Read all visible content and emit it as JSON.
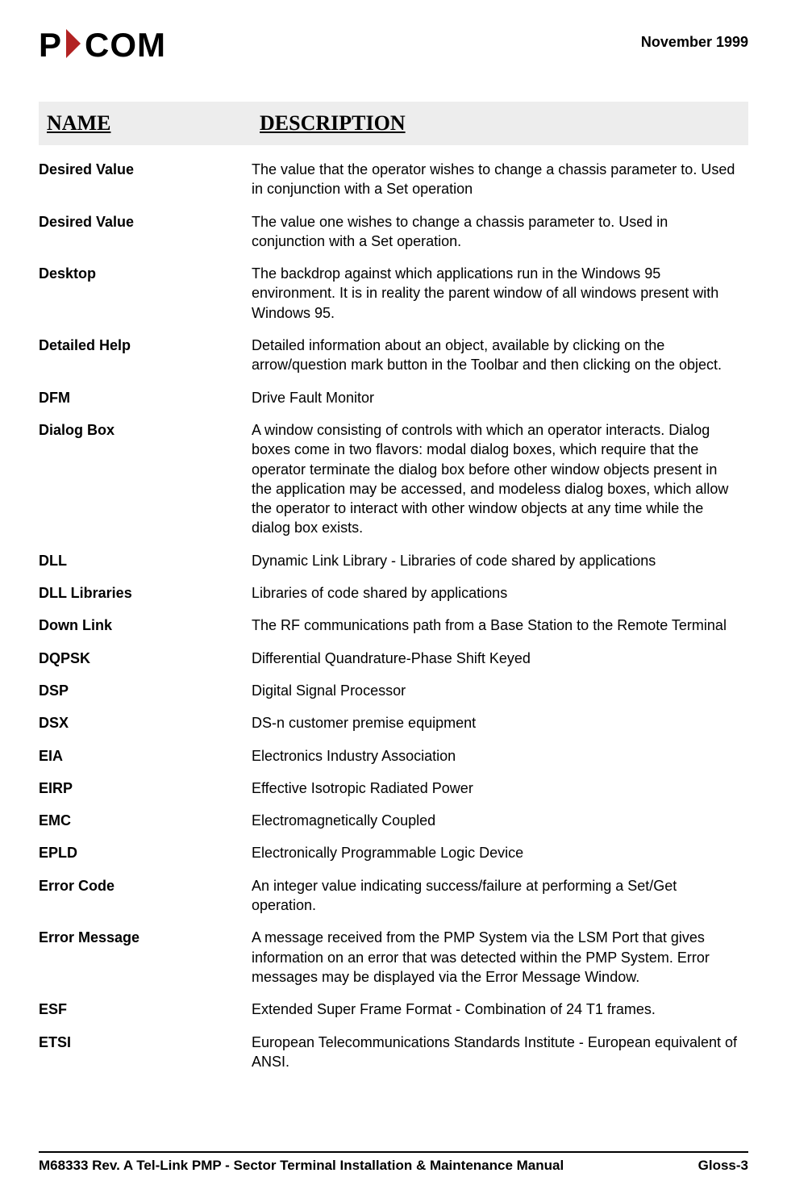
{
  "header": {
    "logo_p": "P",
    "logo_com": "COM",
    "triangle_color": "#b22222",
    "date": "November 1999"
  },
  "table": {
    "header_name": "NAME",
    "header_desc": "DESCRIPTION",
    "header_bg": "#ededed",
    "header_font": "Times New Roman",
    "header_fontsize": 26,
    "body_fontsize": 18,
    "name_col_width": 264,
    "rows": [
      {
        "name": "Desired Value",
        "desc": "The value that the operator wishes to change a chassis parameter to. Used in conjunction with a Set operation"
      },
      {
        "name": "Desired Value",
        "desc": "The value one wishes to change a chassis parameter to. Used in conjunction with a Set operation."
      },
      {
        "name": "Desktop",
        "desc": "The backdrop against which applications run in the Windows 95 environment. It is in reality the parent window of all windows present with Windows 95."
      },
      {
        "name": "Detailed Help",
        "desc": "Detailed information about an object, available by clicking on the arrow/question mark button in the Toolbar and then clicking on the object."
      },
      {
        "name": "DFM",
        "desc": "Drive Fault Monitor"
      },
      {
        "name": "Dialog Box",
        "desc": "A window consisting of controls with which an operator interacts. Dialog boxes come in two flavors: modal dialog boxes, which require that the operator terminate the dialog box before other window objects present in the application may be accessed, and modeless dialog boxes, which allow the operator to interact with other window objects at any time while the dialog box exists."
      },
      {
        "name": "DLL",
        "desc": "Dynamic Link Library - Libraries of code shared by applications"
      },
      {
        "name": "DLL Libraries",
        "desc": "Libraries of code shared by applications"
      },
      {
        "name": "Down Link",
        "desc": "The RF communications path from a Base Station to the Remote Terminal"
      },
      {
        "name": "DQPSK",
        "desc": "Differential Quandrature-Phase Shift Keyed"
      },
      {
        "name": "DSP",
        "desc": "Digital Signal Processor"
      },
      {
        "name": "DSX",
        "desc": "DS-n customer premise equipment"
      },
      {
        "name": "EIA",
        "desc": "Electronics Industry Association"
      },
      {
        "name": "EIRP",
        "desc": "Effective Isotropic Radiated Power"
      },
      {
        "name": "EMC",
        "desc": "Electromagnetically Coupled"
      },
      {
        "name": "EPLD",
        "desc": "Electronically Programmable Logic Device"
      },
      {
        "name": "Error Code",
        "desc": "An integer value indicating success/failure at performing a Set/Get operation."
      },
      {
        "name": "Error Message",
        "desc": "A message received from the PMP System via the LSM Port that gives information on an error that was detected within the PMP System. Error messages may be displayed via the Error Message Window."
      },
      {
        "name": "ESF",
        "desc": "Extended Super Frame Format - Combination of 24 T1 frames."
      },
      {
        "name": "ETSI",
        "desc": "European Telecommunications Standards Institute - European equivalent of ANSI."
      }
    ]
  },
  "footer": {
    "left": "M68333 Rev. A Tel-Link PMP - Sector Terminal Installation & Maintenance Manual",
    "right": "Gloss-3",
    "rule_color": "#000000"
  }
}
